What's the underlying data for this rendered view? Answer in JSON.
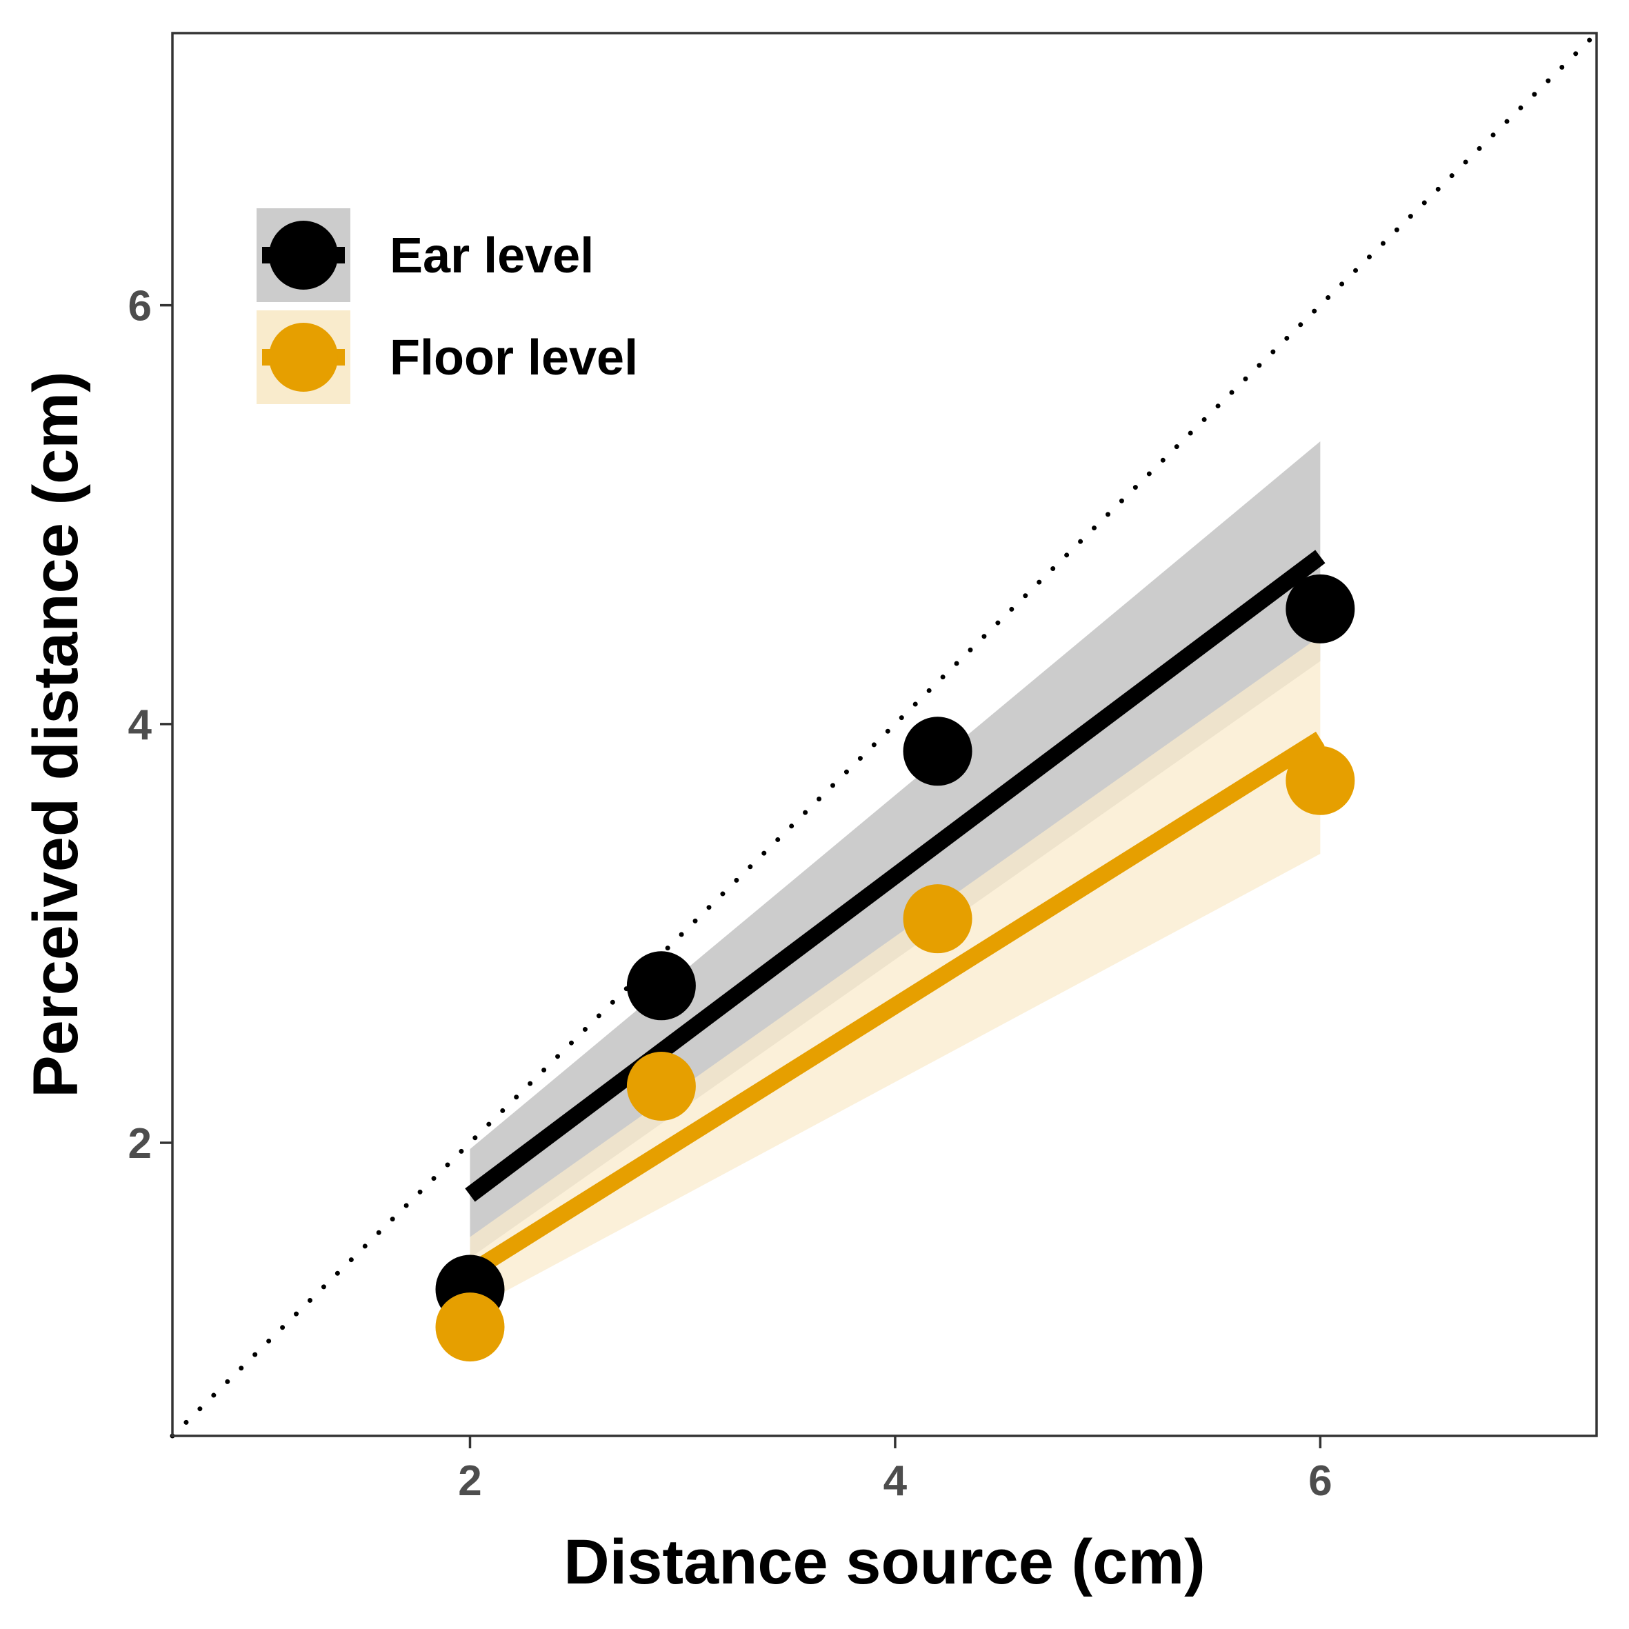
{
  "chart_data": {
    "type": "scatter",
    "title": "",
    "xlabel": "Distance source (cm)",
    "ylabel": "Perceived distance (cm)",
    "xlim": [
      0.6,
      7.3
    ],
    "ylim": [
      0.6,
      7.3
    ],
    "x_ticks": [
      2,
      4,
      6
    ],
    "y_ticks": [
      2,
      4,
      6
    ],
    "x_tick_labels": [
      "2",
      "4",
      "6"
    ],
    "y_tick_labels": [
      "2",
      "4",
      "6"
    ],
    "grid": false,
    "legend_position": "top-left",
    "reference_line": {
      "style": "dotted",
      "slope": 1,
      "intercept": 0,
      "color": "#000000"
    },
    "series": [
      {
        "name": "Ear level",
        "color": "#000000",
        "ribbon_color": "#cccccc",
        "points": [
          {
            "x": 2.0,
            "y": 1.3
          },
          {
            "x": 2.9,
            "y": 2.75
          },
          {
            "x": 4.2,
            "y": 3.87
          },
          {
            "x": 6.0,
            "y": 4.55
          }
        ],
        "fit": {
          "x": [
            2.0,
            6.0
          ],
          "y": [
            1.75,
            4.8
          ]
        },
        "ci_lower": [
          1.45,
          4.3
        ],
        "ci_upper": [
          1.97,
          5.35
        ]
      },
      {
        "name": "Floor level",
        "color": "#e69f00",
        "ribbon_color": "#f9ebcc",
        "points": [
          {
            "x": 2.0,
            "y": 1.12
          },
          {
            "x": 2.9,
            "y": 2.27
          },
          {
            "x": 4.2,
            "y": 3.07
          },
          {
            "x": 6.0,
            "y": 3.73
          }
        ],
        "fit": {
          "x": [
            2.0,
            6.0
          ],
          "y": [
            1.38,
            3.93
          ]
        },
        "ci_lower": [
          1.2,
          3.38
        ],
        "ci_upper": [
          1.55,
          4.42
        ]
      }
    ]
  }
}
